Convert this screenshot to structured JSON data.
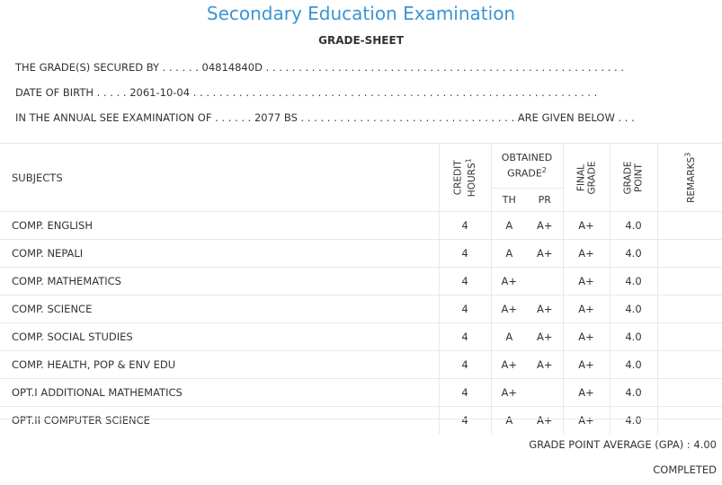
{
  "header": {
    "title": "Secondary Education Examination",
    "subtitle": "GRADE-SHEET"
  },
  "info": {
    "secured_by_line": "THE GRADE(S) SECURED BY . . . . . . 04814840D . . . . . . . . . . . . . . . . . . . . . . . . . . . . . . . . . . . . . . . . . . . . . . . . . . . . . . .",
    "dob_line": "DATE OF BIRTH . . . . . 2061-10-04 . . . . . . . . . . . . . . . . . . . . . . . . . . . . . . . . . . . . . . . . . . . . . . . . . . . . . . . . . . . . . .",
    "exam_line": "IN THE ANNUAL SEE EXAMINATION OF . . . . . . 2077 BS . . . . . . . . . . . . . . . . . . . . . . . . . . . . . . . . . ARE GIVEN BELOW . . ."
  },
  "table": {
    "headers": {
      "subjects": "SUBJECTS",
      "credit_hours_1": "CREDIT",
      "credit_hours_2": "HOURS",
      "credit_sup": "1",
      "obtained_1": "OBTAINED",
      "obtained_2": "GRADE",
      "obtained_sup": "2",
      "th": "TH",
      "pr": "PR",
      "final_1": "FINAL",
      "final_2": "GRADE",
      "point_1": "GRADE",
      "point_2": "POINT",
      "remarks": "REMARKS",
      "remarks_sup": "3"
    },
    "rows": [
      {
        "subject": "COMP. ENGLISH",
        "credit": "4",
        "th": "A",
        "pr": "A+",
        "final": "A+",
        "point": "4.0",
        "remarks": ""
      },
      {
        "subject": "COMP. NEPALI",
        "credit": "4",
        "th": "A",
        "pr": "A+",
        "final": "A+",
        "point": "4.0",
        "remarks": ""
      },
      {
        "subject": "COMP. MATHEMATICS",
        "credit": "4",
        "th": "A+",
        "pr": "",
        "final": "A+",
        "point": "4.0",
        "remarks": ""
      },
      {
        "subject": "COMP. SCIENCE",
        "credit": "4",
        "th": "A+",
        "pr": "A+",
        "final": "A+",
        "point": "4.0",
        "remarks": ""
      },
      {
        "subject": "COMP. SOCIAL STUDIES",
        "credit": "4",
        "th": "A",
        "pr": "A+",
        "final": "A+",
        "point": "4.0",
        "remarks": ""
      },
      {
        "subject": "COMP. HEALTH, POP & ENV EDU",
        "credit": "4",
        "th": "A+",
        "pr": "A+",
        "final": "A+",
        "point": "4.0",
        "remarks": ""
      },
      {
        "subject": "OPT.I ADDITIONAL MATHEMATICS",
        "credit": "4",
        "th": "A+",
        "pr": "",
        "final": "A+",
        "point": "4.0",
        "remarks": ""
      },
      {
        "subject": "OPT.II COMPUTER SCIENCE",
        "credit": "4",
        "th": "A",
        "pr": "A+",
        "final": "A+",
        "point": "4.0",
        "remarks": ""
      }
    ]
  },
  "footer": {
    "gpa_text": "GRADE POINT AVERAGE (GPA) : 4.00",
    "status": "COMPLETED"
  }
}
